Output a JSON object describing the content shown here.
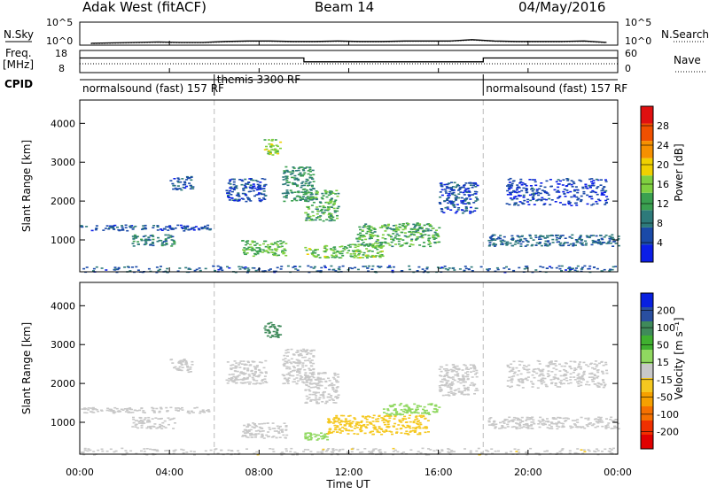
{
  "header": {
    "radar": "Adak West (fitACF)",
    "beam": "Beam 14",
    "date": "04/May/2016"
  },
  "panels": {
    "nsky": {
      "label": "N.Sky",
      "ticks": [
        "10^5",
        "10^0"
      ],
      "right_label": "N.Search",
      "right_ticks": [
        "10^5",
        "10^0"
      ]
    },
    "freq": {
      "label_line1": "Freq.",
      "label_line2": "[MHz]",
      "ticks": [
        "18",
        "8"
      ],
      "right_label": "Nave",
      "right_ticks": [
        "60",
        "0"
      ]
    },
    "cpid": {
      "label": "CPID"
    },
    "power": {
      "ylabel": "Slant Range [km]",
      "cbar_label": "Power [dB]"
    },
    "velocity": {
      "ylabel": "Slant Range [km]",
      "cbar_label": "Velocity [m s⁻¹]"
    }
  },
  "chart_data": [
    {
      "type": "line",
      "name": "nsky_nsearch",
      "title": "",
      "xlabel": "Time UT",
      "x_ticks": [
        "00:00",
        "04:00",
        "08:00",
        "12:00",
        "16:00",
        "20:00",
        "00:00"
      ],
      "xlim_hours": [
        0,
        24
      ],
      "series": [
        {
          "name": "N.Sky",
          "values_log10": [
            0.4,
            0.5,
            0.6,
            0.7,
            0.6,
            0.6,
            0.8,
            0.9,
            0.9,
            0.8,
            0.8,
            0.9,
            0.8,
            0.8,
            0.9,
            0.9,
            0.9,
            1.2,
            0.9,
            0.8,
            0.8,
            0.8,
            0.9,
            0.6
          ]
        },
        {
          "name": "N.Search",
          "values_log10": [
            0.3,
            0.4,
            0.5,
            0.6,
            0.5,
            0.5,
            0.7,
            0.8,
            0.8,
            0.7,
            0.7,
            0.8,
            0.7,
            0.7,
            0.8,
            0.8,
            0.8,
            1.1,
            0.8,
            0.7,
            0.7,
            0.7,
            0.8,
            0.5
          ]
        }
      ],
      "ylim_log10": [
        0,
        5
      ]
    },
    {
      "type": "line",
      "name": "freq_nave",
      "xlim_hours": [
        0,
        24
      ],
      "series": [
        {
          "name": "Freq",
          "units": "MHz",
          "x": [
            0,
            10,
            10,
            18,
            18,
            24
          ],
          "y": [
            14.6,
            14.6,
            12.9,
            12.9,
            14.6,
            14.6
          ]
        },
        {
          "name": "Nave",
          "x": [
            0,
            24
          ],
          "y": [
            24,
            24
          ]
        }
      ],
      "ylim_freq": [
        8,
        18
      ],
      "ylim_nave": [
        0,
        60
      ]
    },
    {
      "type": "table",
      "name": "cpid_modes",
      "segments": [
        {
          "label": "normalsound (fast) 157 RF",
          "start": 0,
          "end": 6
        },
        {
          "label": "themis 3300 RF",
          "start": 6,
          "end": 18
        },
        {
          "label": "normalsound (fast) 157 RF",
          "start": 18,
          "end": 24
        }
      ]
    },
    {
      "type": "heatmap",
      "name": "power",
      "ylabel": "Slant Range [km]",
      "xlabel": "Time UT",
      "y_ticks": [
        "1000",
        "2000",
        "3000",
        "4000"
      ],
      "ylim_km": [
        180,
        4600
      ],
      "x_ticks": [
        "00:00",
        "04:00",
        "08:00",
        "12:00",
        "16:00",
        "20:00",
        "00:00"
      ],
      "colorbar": {
        "label": "Power [dB]",
        "ticks": [
          "4",
          "8",
          "12",
          "16",
          "20",
          "24",
          "28"
        ],
        "range": [
          0,
          30
        ],
        "colors": [
          "#0b1ee8",
          "#1a4aa8",
          "#2d7a7a",
          "#3aa050",
          "#7fd040",
          "#f0d000",
          "#f59000",
          "#f05000",
          "#e01010"
        ]
      },
      "echo_regions": [
        {
          "t0": 0.0,
          "t1": 5.8,
          "r0": 1250,
          "r1": 1400,
          "value": 5
        },
        {
          "t0": 2.3,
          "t1": 4.2,
          "r0": 850,
          "r1": 1150,
          "value": 9
        },
        {
          "t0": 4.0,
          "t1": 5.0,
          "r0": 2300,
          "r1": 2650,
          "value": 5
        },
        {
          "t0": 7.2,
          "t1": 9.2,
          "r0": 600,
          "r1": 1000,
          "value": 13
        },
        {
          "t0": 6.5,
          "t1": 8.3,
          "r0": 2000,
          "r1": 2600,
          "value": 5
        },
        {
          "t0": 8.2,
          "t1": 8.9,
          "r0": 3200,
          "r1": 3600,
          "value": 15
        },
        {
          "t0": 9.0,
          "t1": 10.4,
          "r0": 2000,
          "r1": 2900,
          "value": 10
        },
        {
          "t0": 10.0,
          "t1": 11.5,
          "r0": 1500,
          "r1": 2300,
          "value": 12
        },
        {
          "t0": 10.0,
          "t1": 13.5,
          "r0": 550,
          "r1": 900,
          "value": 14
        },
        {
          "t0": 12.3,
          "t1": 16.0,
          "r0": 850,
          "r1": 1450,
          "value": 12
        },
        {
          "t0": 16.0,
          "t1": 17.7,
          "r0": 1700,
          "r1": 2500,
          "value": 5
        },
        {
          "t0": 18.2,
          "t1": 24.0,
          "r0": 850,
          "r1": 1150,
          "value": 7
        },
        {
          "t0": 19.0,
          "t1": 23.5,
          "r0": 1900,
          "r1": 2600,
          "value": 4
        },
        {
          "t0": 0.0,
          "t1": 24.0,
          "r0": 180,
          "r1": 350,
          "value": 6
        }
      ]
    },
    {
      "type": "heatmap",
      "name": "velocity",
      "ylabel": "Slant Range [km]",
      "xlabel": "Time UT",
      "y_ticks": [
        "1000",
        "2000",
        "3000",
        "4000"
      ],
      "ylim_km": [
        180,
        4600
      ],
      "x_ticks": [
        "00:00",
        "04:00",
        "08:00",
        "12:00",
        "16:00",
        "20:00",
        "00:00"
      ],
      "colorbar": {
        "label": "Velocity [m s⁻¹]",
        "ticks": [
          "200",
          "100",
          "50",
          "15",
          "-15",
          "-50",
          "-100",
          "-200"
        ],
        "range": [
          -250,
          250
        ],
        "colors": [
          "#e00000",
          "#f03000",
          "#f57000",
          "#f5a000",
          "#f5c820",
          "#c8c8c8",
          "#90d860",
          "#40b030",
          "#3f8a5a",
          "#2a4fa0",
          "#0820e0"
        ]
      },
      "echo_regions": [
        {
          "t0": 0.0,
          "t1": 5.8,
          "r0": 1250,
          "r1": 1400,
          "value": 0
        },
        {
          "t0": 2.3,
          "t1": 4.2,
          "r0": 850,
          "r1": 1150,
          "value": 0
        },
        {
          "t0": 4.0,
          "t1": 5.0,
          "r0": 2300,
          "r1": 2650,
          "value": 0
        },
        {
          "t0": 7.2,
          "t1": 9.2,
          "r0": 600,
          "r1": 1000,
          "value": -5
        },
        {
          "t0": 6.5,
          "t1": 8.3,
          "r0": 2000,
          "r1": 2600,
          "value": 0
        },
        {
          "t0": 8.2,
          "t1": 8.9,
          "r0": 3200,
          "r1": 3600,
          "value": 120
        },
        {
          "t0": 9.0,
          "t1": 10.4,
          "r0": 2000,
          "r1": 2900,
          "value": 0
        },
        {
          "t0": 10.0,
          "t1": 11.5,
          "r0": 1500,
          "r1": 2300,
          "value": 0
        },
        {
          "t0": 10.0,
          "t1": 11.0,
          "r0": 550,
          "r1": 750,
          "value": 40
        },
        {
          "t0": 11.0,
          "t1": 15.5,
          "r0": 700,
          "r1": 1200,
          "value": -60
        },
        {
          "t0": 13.5,
          "t1": 16.0,
          "r0": 1200,
          "r1": 1500,
          "value": 40
        },
        {
          "t0": 16.0,
          "t1": 17.7,
          "r0": 1700,
          "r1": 2500,
          "value": 0
        },
        {
          "t0": 18.2,
          "t1": 24.0,
          "r0": 850,
          "r1": 1150,
          "value": 0
        },
        {
          "t0": 19.0,
          "t1": 23.5,
          "r0": 1900,
          "r1": 2600,
          "value": 0
        },
        {
          "t0": 0.0,
          "t1": 24.0,
          "r0": 180,
          "r1": 350,
          "value": -20
        }
      ]
    }
  ]
}
